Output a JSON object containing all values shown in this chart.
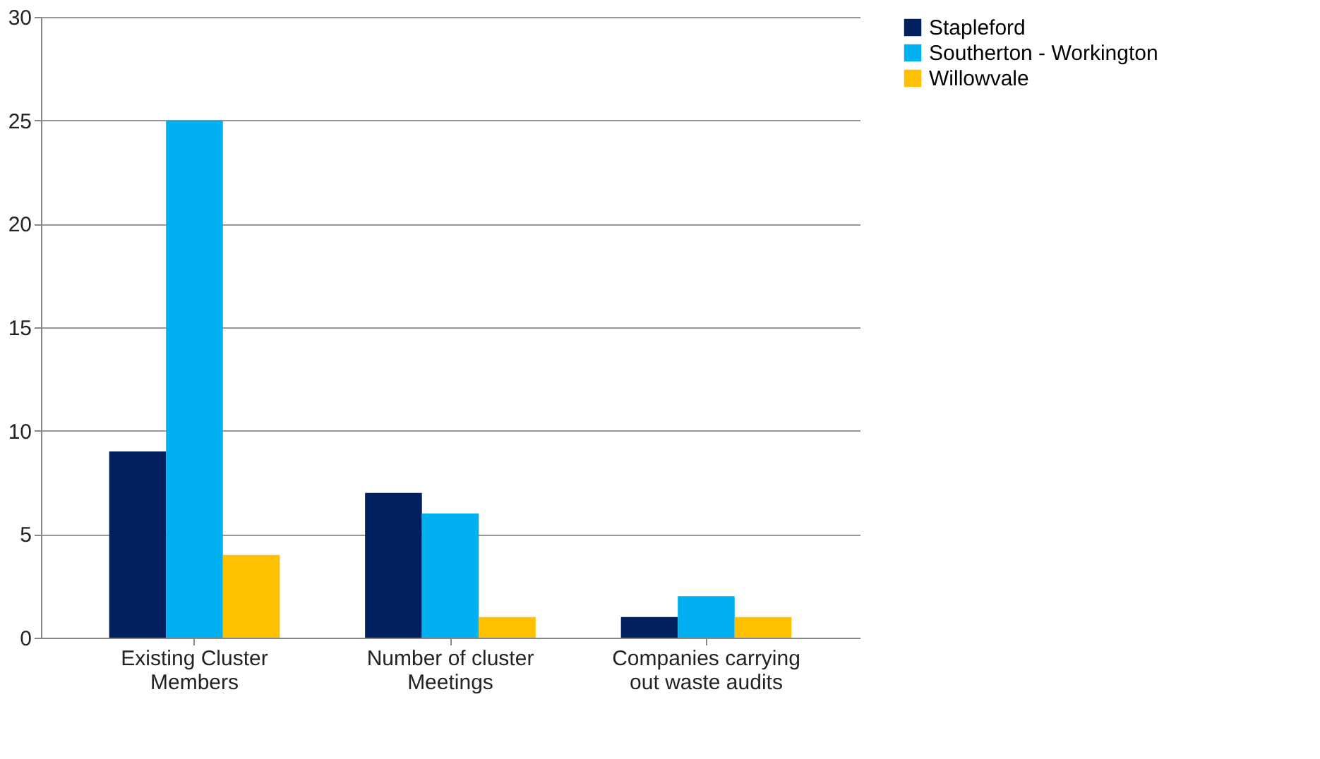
{
  "chart_data": {
    "type": "bar",
    "categories": [
      "Existing Cluster Members",
      "Number of cluster Meetings",
      "Companies carrying out waste audits"
    ],
    "series": [
      {
        "name": "Stapleford",
        "color": "#002060",
        "values": [
          9,
          7,
          1
        ]
      },
      {
        "name": "Southerton - Workington",
        "color": "#00b0f0",
        "values": [
          25,
          6,
          2
        ]
      },
      {
        "name": "Willowvale",
        "color": "#ffc000",
        "values": [
          4,
          1,
          1
        ]
      }
    ],
    "ylim": [
      0,
      30
    ],
    "yticks": [
      0,
      5,
      10,
      15,
      20,
      25,
      30
    ],
    "grid": "y",
    "legend": "right"
  }
}
